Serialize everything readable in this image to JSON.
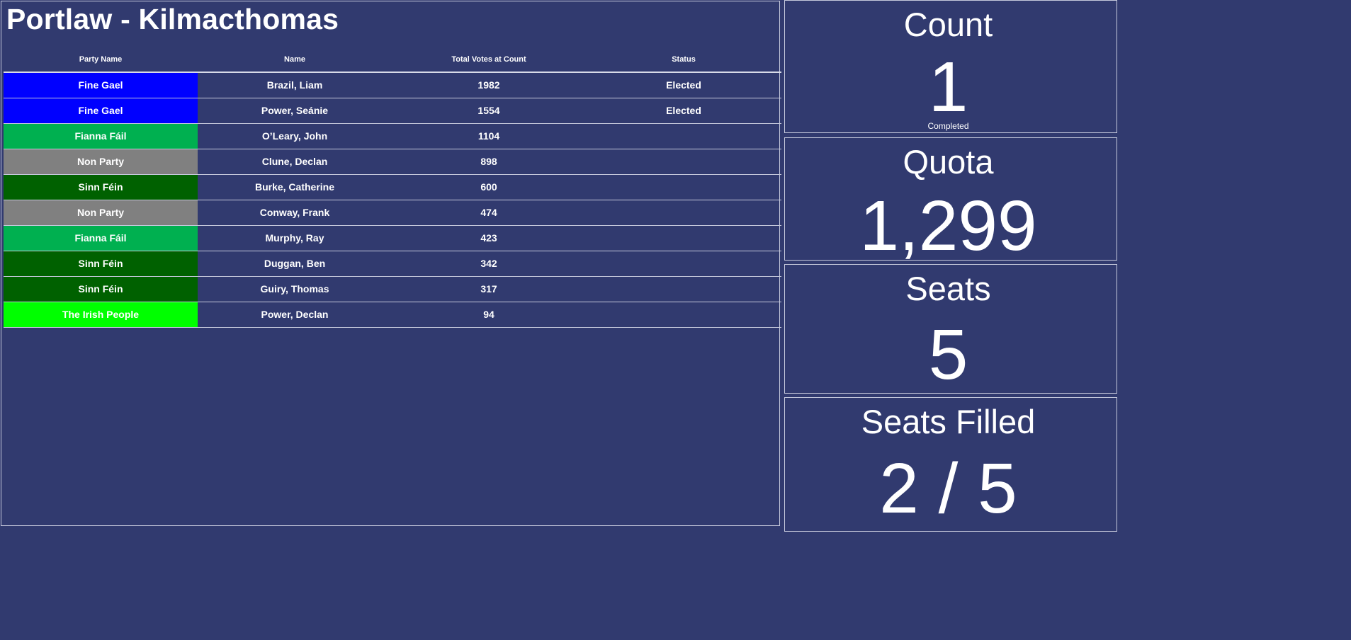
{
  "title": "Portlaw - Kilmacthomas",
  "table": {
    "headers": {
      "party": "Party Name",
      "name": "Name",
      "votes": "Total Votes at Count",
      "status": "Status"
    },
    "rows": [
      {
        "party": "Fine Gael",
        "party_color": "#0000ff",
        "name": "Brazil, Liam",
        "votes": "1982",
        "status": "Elected"
      },
      {
        "party": "Fine Gael",
        "party_color": "#0000ff",
        "name": "Power, Seánie",
        "votes": "1554",
        "status": "Elected"
      },
      {
        "party": "Fianna Fáil",
        "party_color": "#00b050",
        "name": "O’Leary, John",
        "votes": "1104",
        "status": ""
      },
      {
        "party": "Non Party",
        "party_color": "#808080",
        "name": "Clune, Declan",
        "votes": "898",
        "status": ""
      },
      {
        "party": "Sinn Féin",
        "party_color": "#006100",
        "name": "Burke, Catherine",
        "votes": "600",
        "status": ""
      },
      {
        "party": "Non Party",
        "party_color": "#808080",
        "name": "Conway, Frank",
        "votes": "474",
        "status": ""
      },
      {
        "party": "Fianna Fáil",
        "party_color": "#00b050",
        "name": "Murphy, Ray",
        "votes": "423",
        "status": ""
      },
      {
        "party": "Sinn Féin",
        "party_color": "#006100",
        "name": "Duggan, Ben",
        "votes": "342",
        "status": ""
      },
      {
        "party": "Sinn Féin",
        "party_color": "#006100",
        "name": "Guiry, Thomas",
        "votes": "317",
        "status": ""
      },
      {
        "party": "The Irish People",
        "party_color": "#00ff00",
        "name": "Power, Declan",
        "votes": "94",
        "status": ""
      }
    ]
  },
  "stats": {
    "count": {
      "label": "Count",
      "value": "1",
      "sub": "Completed"
    },
    "quota": {
      "label": "Quota",
      "value": "1,299"
    },
    "seats": {
      "label": "Seats",
      "value": "5"
    },
    "seats_filled": {
      "label": "Seats Filled",
      "value": "2 / 5"
    }
  },
  "colors": {
    "background": "#313a6f",
    "border": "#c6c9dc",
    "text": "#ffffff"
  }
}
